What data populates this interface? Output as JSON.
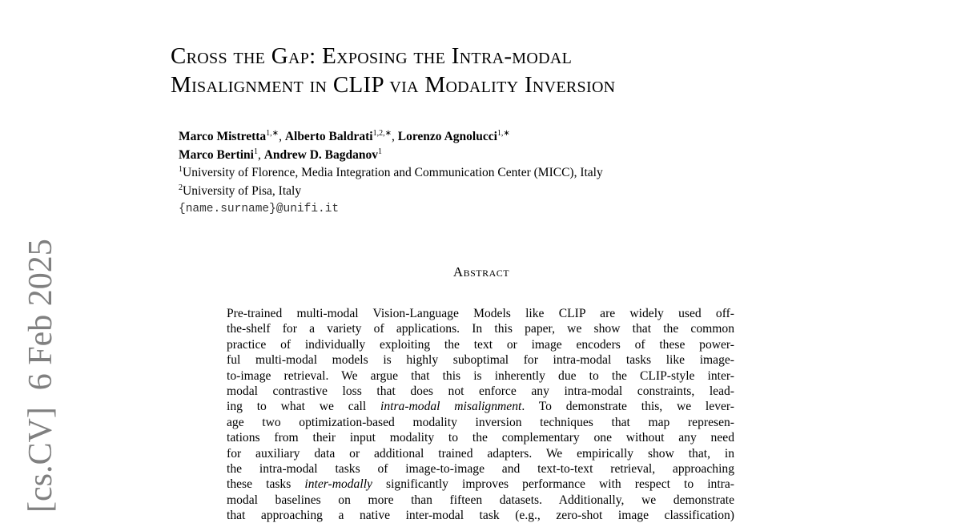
{
  "title": {
    "line1": "Cross the Gap: Exposing the Intra-modal",
    "line2": "Misalignment in CLIP via Modality Inversion"
  },
  "authors": {
    "row1": [
      {
        "name": "Marco Mistretta",
        "sup": "1,∗"
      },
      {
        "name": "Alberto Baldrati",
        "sup": "1,2,∗"
      },
      {
        "name": "Lorenzo Agnolucci",
        "sup": "1,∗"
      }
    ],
    "row2": [
      {
        "name": "Marco Bertini",
        "sup": "1"
      },
      {
        "name": "Andrew D. Bagdanov",
        "sup": "1"
      }
    ],
    "affiliations": [
      {
        "sup": "1",
        "text": "University of Florence, Media Integration and Communication Center (MICC), Italy"
      },
      {
        "sup": "2",
        "text": "University of Pisa, Italy"
      }
    ],
    "email": "{name.surname}@unifi.it"
  },
  "abstract_heading": "Abstract",
  "abstract_lines": [
    [
      {
        "t": "Pre-trained multi-modal Vision-Language Models like CLIP are widely used off-"
      }
    ],
    [
      {
        "t": "the-shelf for a variety of applications. In this paper, we show that the common"
      }
    ],
    [
      {
        "t": "practice of individually exploiting the text or image encoders of these power-"
      }
    ],
    [
      {
        "t": "ful multi-modal models is highly suboptimal for intra-modal tasks like image-"
      }
    ],
    [
      {
        "t": "to-image retrieval. We argue that this is inherently due to the CLIP-style inter-"
      }
    ],
    [
      {
        "t": "modal contrastive loss that does not enforce any intra-modal constraints, lead-"
      }
    ],
    [
      {
        "t": "ing to what we call "
      },
      {
        "t": "intra-modal misalignment",
        "i": true
      },
      {
        "t": ". To demonstrate this, we lever-"
      }
    ],
    [
      {
        "t": "age two optimization-based modality inversion techniques that map represen-"
      }
    ],
    [
      {
        "t": "tations from their input modality to the complementary one without any need"
      }
    ],
    [
      {
        "t": "for auxiliary data or additional trained adapters. We empirically show that, in"
      }
    ],
    [
      {
        "t": "the intra-modal tasks of image-to-image and text-to-text retrieval, approaching"
      }
    ],
    [
      {
        "t": "these tasks "
      },
      {
        "t": "inter-modally",
        "i": true
      },
      {
        "t": " significantly improves performance with respect to intra-"
      }
    ],
    [
      {
        "t": "modal baselines on more than fifteen datasets. Additionally, we demonstrate"
      }
    ],
    [
      {
        "t": "that approaching a native inter-modal task (e.g., zero-shot image classification)"
      }
    ]
  ],
  "arxiv_stamp": "[cs.CV]  6 Feb 2025"
}
